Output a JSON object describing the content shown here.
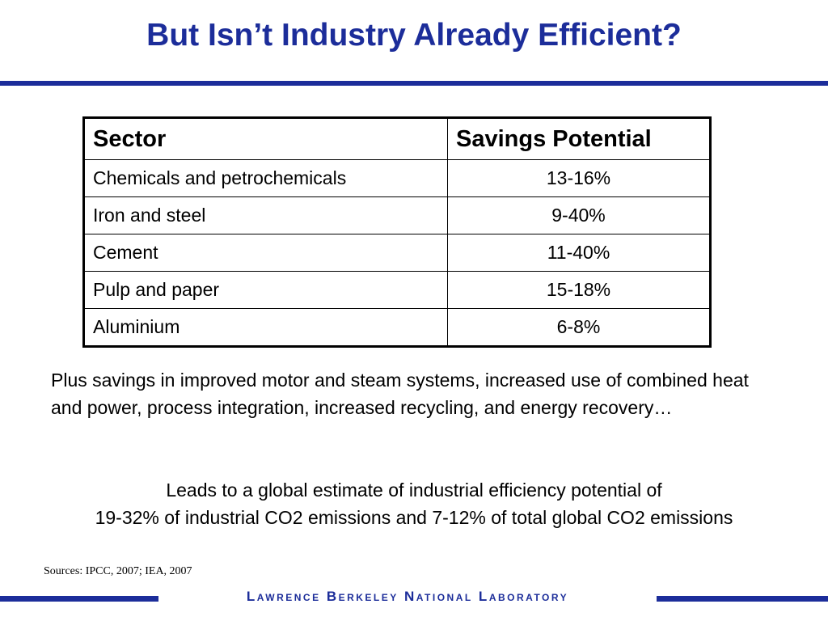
{
  "slide": {
    "title": "But Isn’t Industry Already Efficient?"
  },
  "table": {
    "headers": [
      "Sector",
      "Savings Potential"
    ],
    "rows": [
      {
        "sector": "Chemicals and petrochemicals",
        "savings": "13-16%"
      },
      {
        "sector": "Iron and steel",
        "savings": "9-40%"
      },
      {
        "sector": "Cement",
        "savings": "11-40%"
      },
      {
        "sector": "Pulp and paper",
        "savings": "15-18%"
      },
      {
        "sector": "Aluminium",
        "savings": "6-8%"
      }
    ]
  },
  "body": {
    "plus_text": "Plus savings in improved motor and steam systems, increased use of combined heat and power, process integration, increased recycling, and energy recovery…",
    "leads_line1": "Leads to a global estimate of industrial efficiency potential of",
    "leads_line2": "19-32% of industrial CO2 emissions and 7-12% of total global CO2 emissions"
  },
  "footer": {
    "sources": "Sources: IPCC, 2007; IEA, 2007",
    "lab_name": "Lawrence Berkeley National Laboratory"
  },
  "colors": {
    "accent": "#1c2d9a",
    "text": "#000000",
    "background": "#ffffff"
  }
}
